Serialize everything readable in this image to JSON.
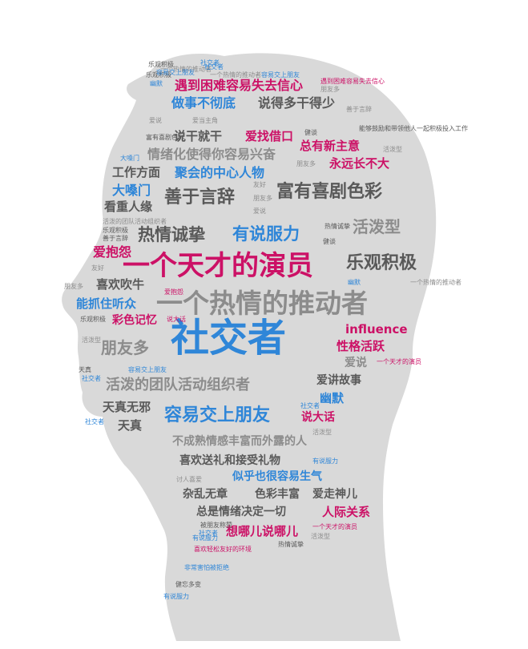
{
  "colors": {
    "silhouette": "#d9d9d9",
    "gray": "#8c8c8c",
    "dark": "#595959",
    "blue": "#2f86d8",
    "magenta": "#cc1166"
  },
  "words": [
    {
      "text": "社交者",
      "color": "blue"
    },
    {
      "text": "一个热情的推动者",
      "color": "gray"
    },
    {
      "text": "一个天才的演员",
      "color": "magenta"
    },
    {
      "text": "容易交上朋友",
      "color": "blue"
    },
    {
      "text": "乐观积极",
      "color": "dark"
    },
    {
      "text": "富有喜剧色彩",
      "color": "dark"
    },
    {
      "text": "善于言辞",
      "color": "dark"
    },
    {
      "text": "热情诚挚",
      "color": "dark"
    },
    {
      "text": "有说服力",
      "color": "blue"
    },
    {
      "text": "活泼型",
      "color": "gray"
    },
    {
      "text": "活泼的团队活动组织者",
      "color": "gray"
    },
    {
      "text": "朋友多",
      "color": "gray"
    },
    {
      "text": "遇到困难容易失去信心",
      "color": "magenta"
    },
    {
      "text": "做事不彻底",
      "color": "blue"
    },
    {
      "text": "说得多干得少",
      "color": "dark"
    },
    {
      "text": "说干就干",
      "color": "dark"
    },
    {
      "text": "爱找借口",
      "color": "magenta"
    },
    {
      "text": "总有新主意",
      "color": "magenta"
    },
    {
      "text": "情绪化使得你容易兴奋",
      "color": "gray"
    },
    {
      "text": "永远长不大",
      "color": "magenta"
    },
    {
      "text": "工作方面",
      "color": "dark"
    },
    {
      "text": "聚会的中心人物",
      "color": "blue"
    },
    {
      "text": "大嗓门",
      "color": "blue"
    },
    {
      "text": "看重人缘",
      "color": "dark"
    },
    {
      "text": "爱抱怨",
      "color": "magenta"
    },
    {
      "text": "喜欢吹牛",
      "color": "dark"
    },
    {
      "text": "能抓住听众",
      "color": "blue"
    },
    {
      "text": "彩色记忆",
      "color": "magenta"
    },
    {
      "text": "influence",
      "color": "magenta"
    },
    {
      "text": "性格活跃",
      "color": "magenta"
    },
    {
      "text": "爱说",
      "color": "gray"
    },
    {
      "text": "爱讲故事",
      "color": "dark"
    },
    {
      "text": "幽默",
      "color": "blue"
    },
    {
      "text": "说大话",
      "color": "magenta"
    },
    {
      "text": "天真无邪",
      "color": "dark"
    },
    {
      "text": "天真",
      "color": "dark"
    },
    {
      "text": "不成熟情感丰富而外露的人",
      "color": "gray"
    },
    {
      "text": "喜欢送礼和接受礼物",
      "color": "dark"
    },
    {
      "text": "似乎也很容易生气",
      "color": "blue"
    },
    {
      "text": "杂乱无章",
      "color": "dark"
    },
    {
      "text": "色彩丰富",
      "color": "dark"
    },
    {
      "text": "爱走神儿",
      "color": "dark"
    },
    {
      "text": "总是情绪决定一切",
      "color": "dark"
    },
    {
      "text": "人际关系",
      "color": "magenta"
    },
    {
      "text": "想哪儿说哪儿",
      "color": "magenta"
    },
    {
      "text": "社交者",
      "color": "blue"
    },
    {
      "text": "乐观积极",
      "color": "dark"
    },
    {
      "text": "一个热情的推动者",
      "color": "gray"
    },
    {
      "text": "容易交上朋友",
      "color": "blue"
    },
    {
      "text": "幽默",
      "color": "blue"
    },
    {
      "text": "遇到困难容易失去信心",
      "color": "magenta"
    },
    {
      "text": "朋友多",
      "color": "gray"
    },
    {
      "text": "善于言辞",
      "color": "gray"
    },
    {
      "text": "爱说",
      "color": "gray"
    },
    {
      "text": "爱当主角",
      "color": "gray"
    },
    {
      "text": "能够鼓励和带领他人一起积极投入工作",
      "color": "dark"
    },
    {
      "text": "健谈",
      "color": "dark"
    },
    {
      "text": "富有喜剧色彩",
      "color": "dark"
    },
    {
      "text": "大嗓门",
      "color": "blue"
    },
    {
      "text": "活泼型",
      "color": "gray"
    },
    {
      "text": "朋友多",
      "color": "gray"
    },
    {
      "text": "友好",
      "color": "gray"
    },
    {
      "text": "朋友多",
      "color": "gray"
    },
    {
      "text": "爱说",
      "color": "gray"
    },
    {
      "text": "活泼的团队活动组织者",
      "color": "gray"
    },
    {
      "text": "乐观积极",
      "color": "dark"
    },
    {
      "text": "善于言辞",
      "color": "dark"
    },
    {
      "text": "热情诚挚",
      "color": "dark"
    },
    {
      "text": "健谈",
      "color": "dark"
    },
    {
      "text": "友好",
      "color": "gray"
    },
    {
      "text": "幽默",
      "color": "blue"
    },
    {
      "text": "一个热情的推动者",
      "color": "gray"
    },
    {
      "text": "朋友多",
      "color": "gray"
    },
    {
      "text": "爱抱怨",
      "color": "magenta"
    },
    {
      "text": "乐观积极",
      "color": "dark"
    },
    {
      "text": "说大话",
      "color": "magenta"
    },
    {
      "text": "活泼型",
      "color": "gray"
    },
    {
      "text": "天真",
      "color": "dark"
    },
    {
      "text": "容易交上朋友",
      "color": "blue"
    },
    {
      "text": "一个天才的演员",
      "color": "magenta"
    },
    {
      "text": "社交者",
      "color": "blue"
    },
    {
      "text": "社交者",
      "color": "blue"
    },
    {
      "text": "社交者",
      "color": "blue"
    },
    {
      "text": "活泼型",
      "color": "gray"
    },
    {
      "text": "有说服力",
      "color": "blue"
    },
    {
      "text": "讨人喜爱",
      "color": "gray"
    },
    {
      "text": "被朋友称赞",
      "color": "dark"
    },
    {
      "text": "社交者",
      "color": "blue"
    },
    {
      "text": "有说服力",
      "color": "blue"
    },
    {
      "text": "一个天才的演员",
      "color": "magenta"
    },
    {
      "text": "活泼型",
      "color": "gray"
    },
    {
      "text": "喜欢轻松友好的环境",
      "color": "magenta"
    },
    {
      "text": "热情诚挚",
      "color": "dark"
    },
    {
      "text": "非常害怕被拒绝",
      "color": "blue"
    },
    {
      "text": "健忘多变",
      "color": "dark"
    },
    {
      "text": "有说服力",
      "color": "blue"
    },
    {
      "text": "乐观积极",
      "color": "dark"
    },
    {
      "text": "一个热情的推动者",
      "color": "gray"
    },
    {
      "text": "容易交上朋友",
      "color": "blue"
    },
    {
      "text": "社交者",
      "color": "blue"
    }
  ]
}
